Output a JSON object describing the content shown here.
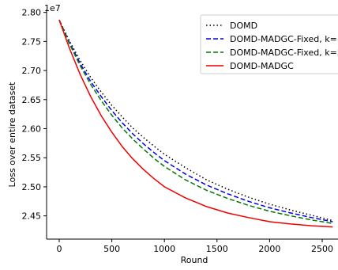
{
  "chart_data": {
    "type": "line",
    "xlabel": "Round",
    "ylabel": "Loss over entire dataset",
    "y_offset_label": "1e7",
    "xlim": [
      -120,
      2650
    ],
    "ylim": [
      2.41,
      2.805
    ],
    "x_ticks": [
      0,
      500,
      1000,
      1500,
      2000,
      2500
    ],
    "y_ticks": [
      2.45,
      2.5,
      2.55,
      2.6,
      2.65,
      2.7,
      2.75,
      2.8
    ],
    "x_tick_labels": [
      "0",
      "500",
      "1000",
      "1500",
      "2000",
      "2500"
    ],
    "y_tick_labels": [
      "2.45",
      "2.50",
      "2.55",
      "2.60",
      "2.65",
      "2.70",
      "2.75",
      "2.80"
    ],
    "legend_position": "top-right",
    "grid": false,
    "series": [
      {
        "name": "DOMD",
        "color": "#000000",
        "style": "dotted",
        "x": [
          0,
          100,
          200,
          300,
          400,
          500,
          600,
          700,
          800,
          900,
          1000,
          1200,
          1400,
          1600,
          1800,
          2000,
          2200,
          2400,
          2600
        ],
        "y": [
          2.787,
          2.75,
          2.717,
          2.688,
          2.663,
          2.64,
          2.62,
          2.601,
          2.585,
          2.57,
          2.556,
          2.533,
          2.512,
          2.496,
          2.482,
          2.47,
          2.46,
          2.451,
          2.442
        ]
      },
      {
        "name": "DOMD-MADGC-Fixed, k=1",
        "color": "#0000ee",
        "style": "dashed",
        "x": [
          0,
          100,
          200,
          300,
          400,
          500,
          600,
          700,
          800,
          900,
          1000,
          1200,
          1400,
          1600,
          1800,
          2000,
          2200,
          2400,
          2600
        ],
        "y": [
          2.787,
          2.747,
          2.712,
          2.681,
          2.655,
          2.631,
          2.61,
          2.591,
          2.574,
          2.559,
          2.545,
          2.522,
          2.503,
          2.488,
          2.475,
          2.464,
          2.455,
          2.447,
          2.44
        ]
      },
      {
        "name": "DOMD-MADGC-Fixed, k=5",
        "color": "#007a00",
        "style": "dashed",
        "x": [
          0,
          100,
          200,
          300,
          400,
          500,
          600,
          700,
          800,
          900,
          1000,
          1200,
          1400,
          1600,
          1800,
          2000,
          2200,
          2400,
          2600
        ],
        "y": [
          2.787,
          2.745,
          2.708,
          2.676,
          2.648,
          2.623,
          2.601,
          2.582,
          2.565,
          2.549,
          2.535,
          2.512,
          2.494,
          2.48,
          2.468,
          2.458,
          2.45,
          2.443,
          2.437
        ]
      },
      {
        "name": "DOMD-MADGC",
        "color": "#ee0000",
        "style": "solid",
        "x": [
          0,
          100,
          200,
          300,
          400,
          500,
          600,
          700,
          800,
          900,
          1000,
          1200,
          1400,
          1600,
          1800,
          2000,
          2200,
          2400,
          2600
        ],
        "y": [
          2.787,
          2.737,
          2.693,
          2.655,
          2.622,
          2.594,
          2.569,
          2.548,
          2.53,
          2.514,
          2.5,
          2.481,
          2.466,
          2.455,
          2.447,
          2.44,
          2.436,
          2.433,
          2.431
        ]
      }
    ]
  }
}
